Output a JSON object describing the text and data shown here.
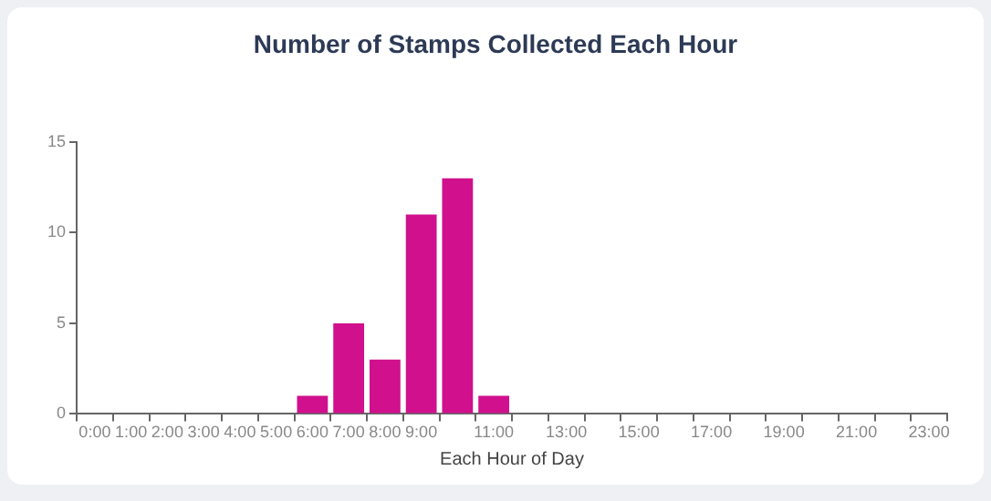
{
  "chart_data": {
    "type": "bar",
    "title": "Number of Stamps Collected Each Hour",
    "xlabel": "Each Hour of Day",
    "categories": [
      "0:00",
      "1:00",
      "2:00",
      "3:00",
      "4:00",
      "5:00",
      "6:00",
      "7:00",
      "8:00",
      "9:00",
      null,
      "11:00",
      null,
      "13:00",
      null,
      "15:00",
      null,
      "17:00",
      null,
      "19:00",
      null,
      "21:00",
      null,
      "23:00"
    ],
    "values": [
      0,
      0,
      0,
      0,
      0,
      0,
      1,
      5,
      3,
      11,
      13,
      1,
      0,
      0,
      0,
      0,
      0,
      0,
      0,
      0,
      0,
      0,
      0,
      0
    ],
    "color": "#d0108c",
    "ylim": [
      0,
      15
    ],
    "yticks": [
      0,
      5,
      10,
      15
    ],
    "grid": false,
    "legend": false
  }
}
